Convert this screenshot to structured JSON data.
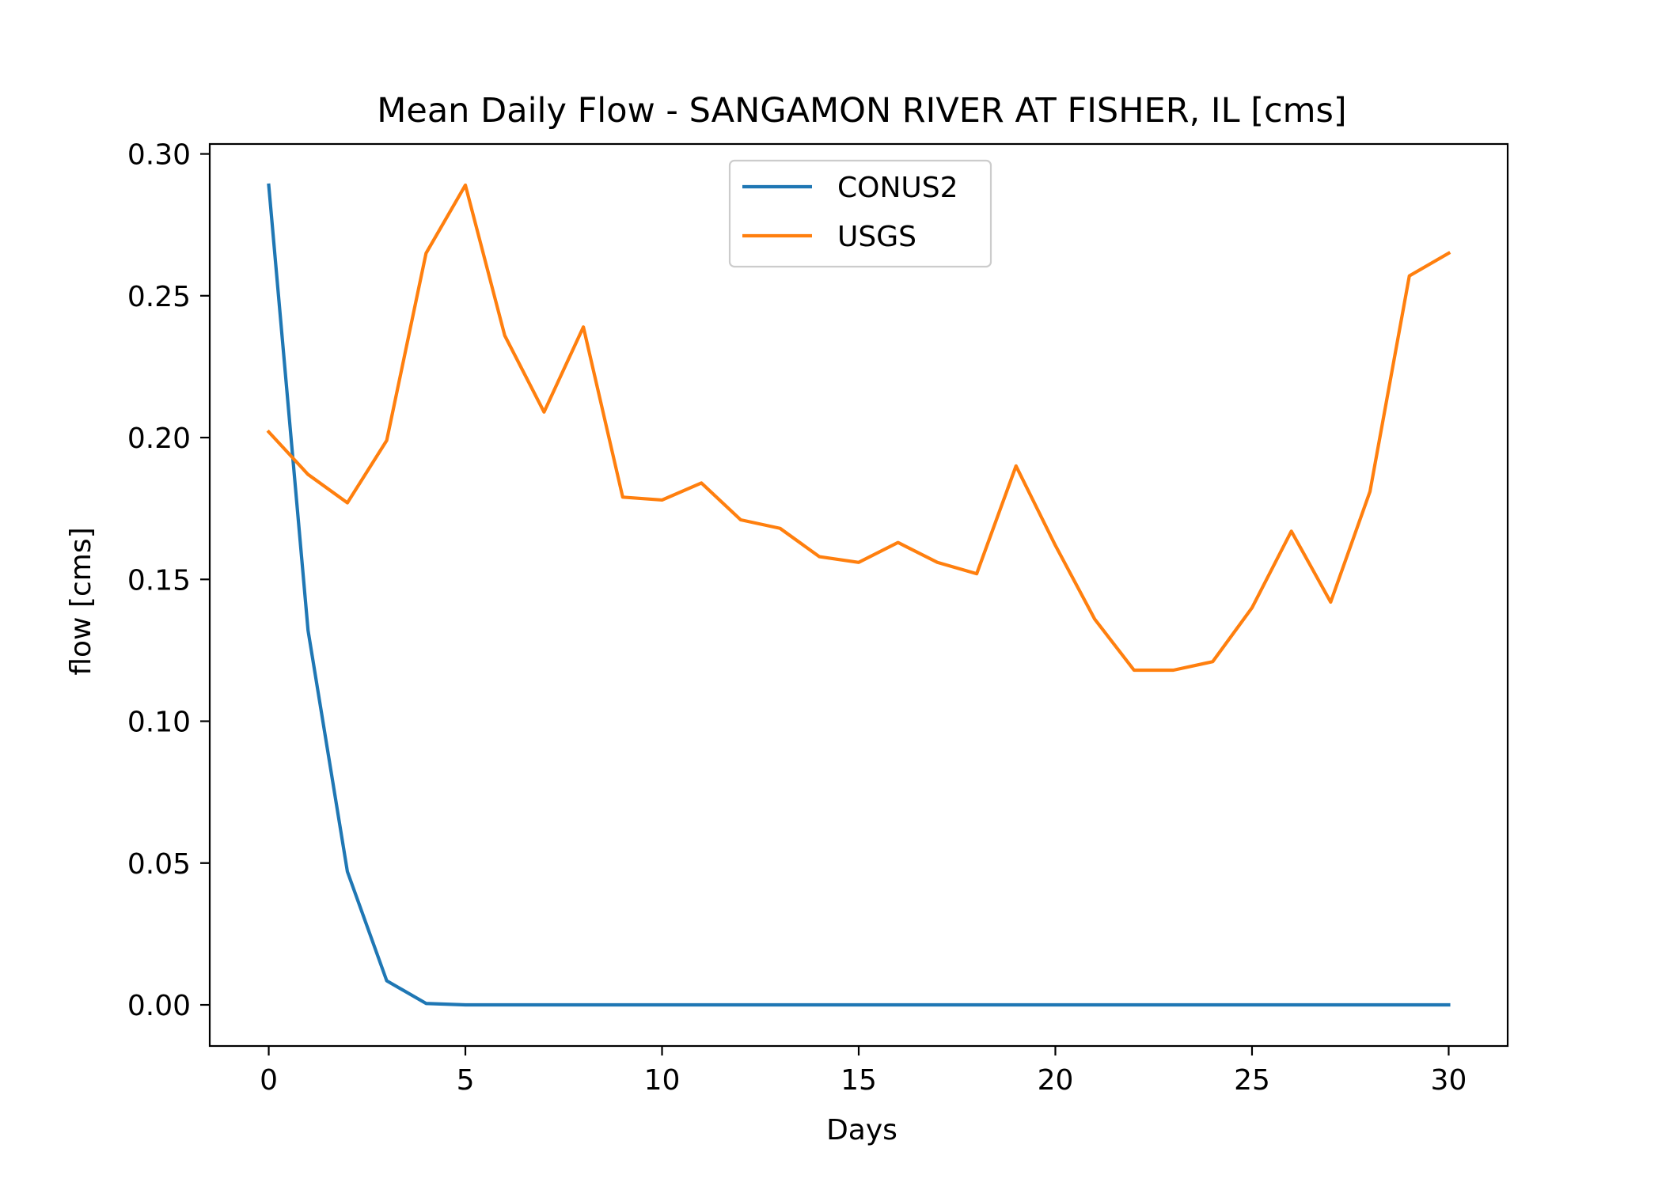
{
  "chart_data": {
    "type": "line",
    "title": "Mean Daily Flow - SANGAMON RIVER AT FISHER, IL [cms]",
    "xlabel": "Days",
    "ylabel": "flow [cms]",
    "xlim": [
      -1.5,
      31.5
    ],
    "ylim": [
      -0.0145,
      0.3035
    ],
    "xticks": [
      0,
      5,
      10,
      15,
      20,
      25,
      30
    ],
    "xtick_labels": [
      "0",
      "5",
      "10",
      "15",
      "20",
      "25",
      "30"
    ],
    "yticks": [
      0.0,
      0.05,
      0.1,
      0.15,
      0.2,
      0.25,
      0.3
    ],
    "ytick_labels": [
      "0.00",
      "0.05",
      "0.10",
      "0.15",
      "0.20",
      "0.25",
      "0.30"
    ],
    "grid": false,
    "legend": "upper center",
    "x": [
      0,
      1,
      2,
      3,
      4,
      5,
      6,
      7,
      8,
      9,
      10,
      11,
      12,
      13,
      14,
      15,
      16,
      17,
      18,
      19,
      20,
      21,
      22,
      23,
      24,
      25,
      26,
      27,
      28,
      29,
      30
    ],
    "series": [
      {
        "name": "CONUS2",
        "color": "#1f77b4",
        "values": [
          0.289,
          0.132,
          0.047,
          0.0085,
          0.0005,
          0.0,
          0.0,
          0.0,
          0.0,
          0.0,
          0.0,
          0.0,
          0.0,
          0.0,
          0.0,
          0.0,
          0.0,
          0.0,
          0.0,
          0.0,
          0.0,
          0.0,
          0.0,
          0.0,
          0.0,
          0.0,
          0.0,
          0.0,
          0.0,
          0.0,
          0.0
        ]
      },
      {
        "name": "USGS",
        "color": "#ff7f0e",
        "values": [
          0.202,
          0.187,
          0.177,
          0.199,
          0.265,
          0.289,
          0.236,
          0.209,
          0.239,
          0.179,
          0.178,
          0.184,
          0.171,
          0.168,
          0.158,
          0.156,
          0.163,
          0.156,
          0.152,
          0.19,
          0.162,
          0.136,
          0.118,
          0.118,
          0.121,
          0.14,
          0.167,
          0.142,
          0.181,
          0.257,
          0.265
        ]
      }
    ]
  }
}
